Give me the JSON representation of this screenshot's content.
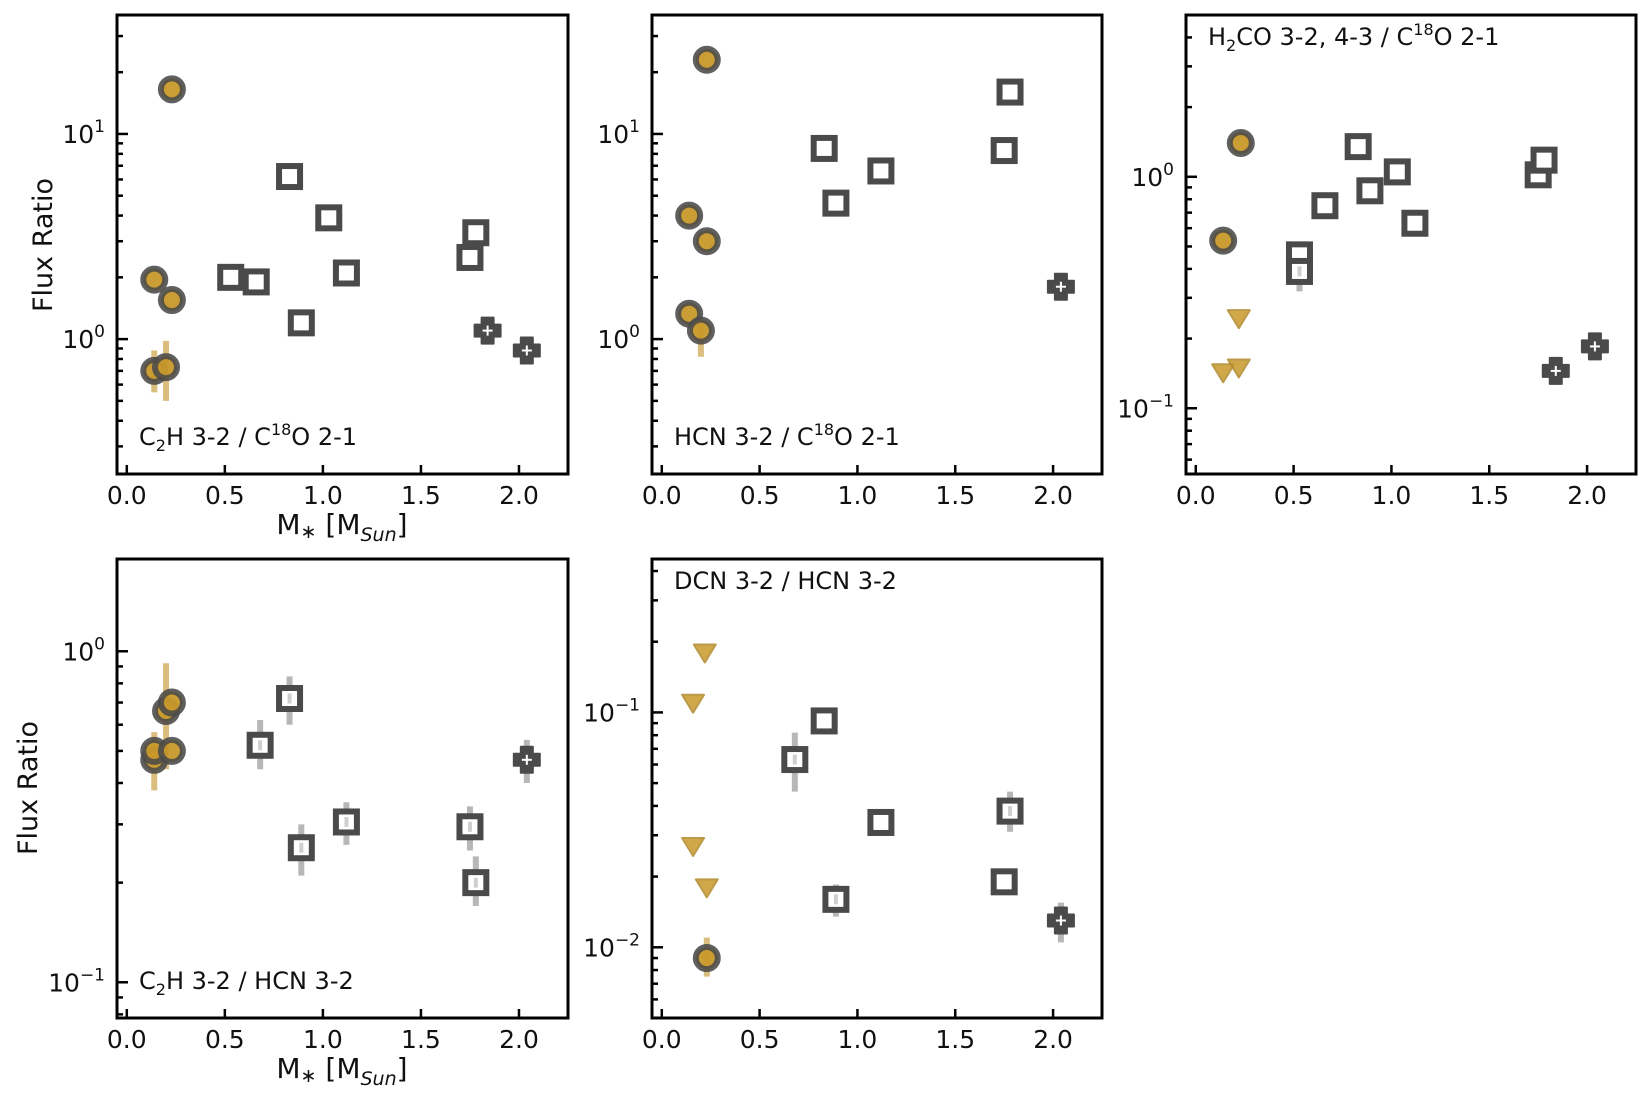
{
  "figure": {
    "ylabel": "Flux Ratio",
    "xlabel": "M",
    "xlabel_sub": "Sun",
    "x_ticks": [
      "0.0",
      "0.5",
      "1.0",
      "1.5",
      "2.0"
    ],
    "colors": {
      "gold": "#c8982a",
      "gray": "#4a4a4a",
      "gold_err": "#d8b870",
      "gray_err": "#b0b0b0",
      "axis": "#000000"
    }
  },
  "chart_data": [
    {
      "type": "scatter",
      "panel": "p1",
      "label": "C2H 3-2 / C18O 2-1",
      "yscale": "log",
      "xlim": [
        -0.05,
        2.25
      ],
      "ylim": [
        0.22,
        38
      ],
      "y_ticks": [
        {
          "v": 1,
          "t": "10",
          "e": "0"
        },
        {
          "v": 10,
          "t": "10",
          "e": "1"
        }
      ],
      "circles": [
        {
          "x": 0.23,
          "y": 16.5
        },
        {
          "x": 0.14,
          "y": 1.95
        },
        {
          "x": 0.23,
          "y": 1.55
        },
        {
          "x": 0.14,
          "y": 0.7,
          "err": [
            0.55,
            0.88
          ]
        },
        {
          "x": 0.2,
          "y": 0.73,
          "err": [
            0.5,
            0.98
          ]
        }
      ],
      "squares": [
        {
          "x": 0.83,
          "y": 6.2
        },
        {
          "x": 1.03,
          "y": 3.9
        },
        {
          "x": 0.53,
          "y": 2.0
        },
        {
          "x": 0.66,
          "y": 1.9
        },
        {
          "x": 1.12,
          "y": 2.1
        },
        {
          "x": 0.89,
          "y": 1.2
        },
        {
          "x": 1.75,
          "y": 2.5
        },
        {
          "x": 1.78,
          "y": 3.3
        }
      ],
      "crosses": [
        {
          "x": 1.84,
          "y": 1.1
        },
        {
          "x": 2.04,
          "y": 0.88
        }
      ],
      "triangles": []
    },
    {
      "type": "scatter",
      "panel": "p2",
      "label": "HCN 3-2 / C18O 2-1",
      "yscale": "log",
      "xlim": [
        -0.05,
        2.25
      ],
      "ylim": [
        0.22,
        38
      ],
      "y_ticks": [
        {
          "v": 1,
          "t": "10",
          "e": "0"
        },
        {
          "v": 10,
          "t": "10",
          "e": "1"
        }
      ],
      "circles": [
        {
          "x": 0.23,
          "y": 23
        },
        {
          "x": 0.14,
          "y": 4.0
        },
        {
          "x": 0.23,
          "y": 3.0
        },
        {
          "x": 0.14,
          "y": 1.33
        },
        {
          "x": 0.2,
          "y": 1.1,
          "err": [
            0.82,
            1.25
          ]
        }
      ],
      "squares": [
        {
          "x": 0.83,
          "y": 8.5
        },
        {
          "x": 0.89,
          "y": 4.6
        },
        {
          "x": 1.12,
          "y": 6.6
        },
        {
          "x": 1.75,
          "y": 8.3
        },
        {
          "x": 1.78,
          "y": 16
        }
      ],
      "crosses": [
        {
          "x": 2.04,
          "y": 1.8
        }
      ],
      "triangles": []
    },
    {
      "type": "scatter",
      "panel": "p3",
      "label": "H2CO 3-2, 4-3 / C18O 2-1",
      "yscale": "log",
      "xlim": [
        -0.05,
        2.25
      ],
      "ylim": [
        0.052,
        5.0
      ],
      "y_ticks": [
        {
          "v": 0.1,
          "t": "10",
          "e": "−1"
        },
        {
          "v": 1,
          "t": "10",
          "e": "0"
        }
      ],
      "circles": [
        {
          "x": 0.23,
          "y": 1.4
        },
        {
          "x": 0.14,
          "y": 0.53
        }
      ],
      "squares": [
        {
          "x": 0.83,
          "y": 1.35
        },
        {
          "x": 1.03,
          "y": 1.05
        },
        {
          "x": 0.66,
          "y": 0.75
        },
        {
          "x": 0.89,
          "y": 0.87
        },
        {
          "x": 1.12,
          "y": 0.63
        },
        {
          "x": 0.53,
          "y": 0.46
        },
        {
          "x": 0.53,
          "y": 0.39,
          "err": [
            0.32,
            0.45
          ]
        },
        {
          "x": 1.75,
          "y": 1.02
        },
        {
          "x": 1.78,
          "y": 1.18
        }
      ],
      "crosses": [
        {
          "x": 1.84,
          "y": 0.145
        },
        {
          "x": 2.04,
          "y": 0.185
        }
      ],
      "triangles": [
        {
          "x": 0.22,
          "y": 0.245
        },
        {
          "x": 0.14,
          "y": 0.143
        },
        {
          "x": 0.22,
          "y": 0.15
        }
      ]
    },
    {
      "type": "scatter",
      "panel": "p4",
      "label": "C2H 3-2 / HCN 3-2",
      "yscale": "log",
      "xlim": [
        -0.05,
        2.25
      ],
      "ylim": [
        0.078,
        1.9
      ],
      "y_ticks": [
        {
          "v": 0.1,
          "t": "10",
          "e": "−1"
        },
        {
          "v": 1,
          "t": "10",
          "e": "0"
        }
      ],
      "circles": [
        {
          "x": 0.14,
          "y": 0.47,
          "err": [
            0.38,
            0.57
          ]
        },
        {
          "x": 0.14,
          "y": 0.5
        },
        {
          "x": 0.2,
          "y": 0.66,
          "err": [
            0.44,
            0.92
          ]
        },
        {
          "x": 0.23,
          "y": 0.7
        },
        {
          "x": 0.23,
          "y": 0.5
        }
      ],
      "squares": [
        {
          "x": 0.68,
          "y": 0.52,
          "err": [
            0.44,
            0.62
          ]
        },
        {
          "x": 0.83,
          "y": 0.72,
          "err": [
            0.6,
            0.84
          ]
        },
        {
          "x": 0.89,
          "y": 0.255,
          "err": [
            0.21,
            0.3
          ]
        },
        {
          "x": 1.12,
          "y": 0.305,
          "err": [
            0.26,
            0.35
          ]
        },
        {
          "x": 1.75,
          "y": 0.295,
          "err": [
            0.25,
            0.34
          ]
        },
        {
          "x": 1.78,
          "y": 0.2,
          "err": [
            0.17,
            0.24
          ]
        }
      ],
      "crosses": [
        {
          "x": 2.04,
          "y": 0.47,
          "err": [
            0.4,
            0.54
          ]
        }
      ],
      "triangles": []
    },
    {
      "type": "scatter",
      "panel": "p5",
      "label": "DCN 3-2 / HCN 3-2",
      "yscale": "log",
      "xlim": [
        -0.05,
        2.25
      ],
      "ylim": [
        0.005,
        0.45
      ],
      "y_ticks": [
        {
          "v": 0.01,
          "t": "10",
          "e": "−2"
        },
        {
          "v": 0.1,
          "t": "10",
          "e": "−1"
        }
      ],
      "circles": [
        {
          "x": 0.23,
          "y": 0.009,
          "err": [
            0.0075,
            0.011
          ]
        }
      ],
      "squares": [
        {
          "x": 0.68,
          "y": 0.063,
          "err": [
            0.046,
            0.082
          ]
        },
        {
          "x": 0.83,
          "y": 0.092
        },
        {
          "x": 0.89,
          "y": 0.016,
          "err": [
            0.0135,
            0.0185
          ]
        },
        {
          "x": 1.12,
          "y": 0.034
        },
        {
          "x": 1.75,
          "y": 0.019
        },
        {
          "x": 1.78,
          "y": 0.038,
          "err": [
            0.031,
            0.046
          ]
        }
      ],
      "crosses": [
        {
          "x": 2.04,
          "y": 0.013,
          "err": [
            0.0105,
            0.0155
          ]
        }
      ],
      "triangles": [
        {
          "x": 0.22,
          "y": 0.18
        },
        {
          "x": 0.16,
          "y": 0.11
        },
        {
          "x": 0.16,
          "y": 0.027
        },
        {
          "x": 0.23,
          "y": 0.018
        }
      ]
    }
  ]
}
